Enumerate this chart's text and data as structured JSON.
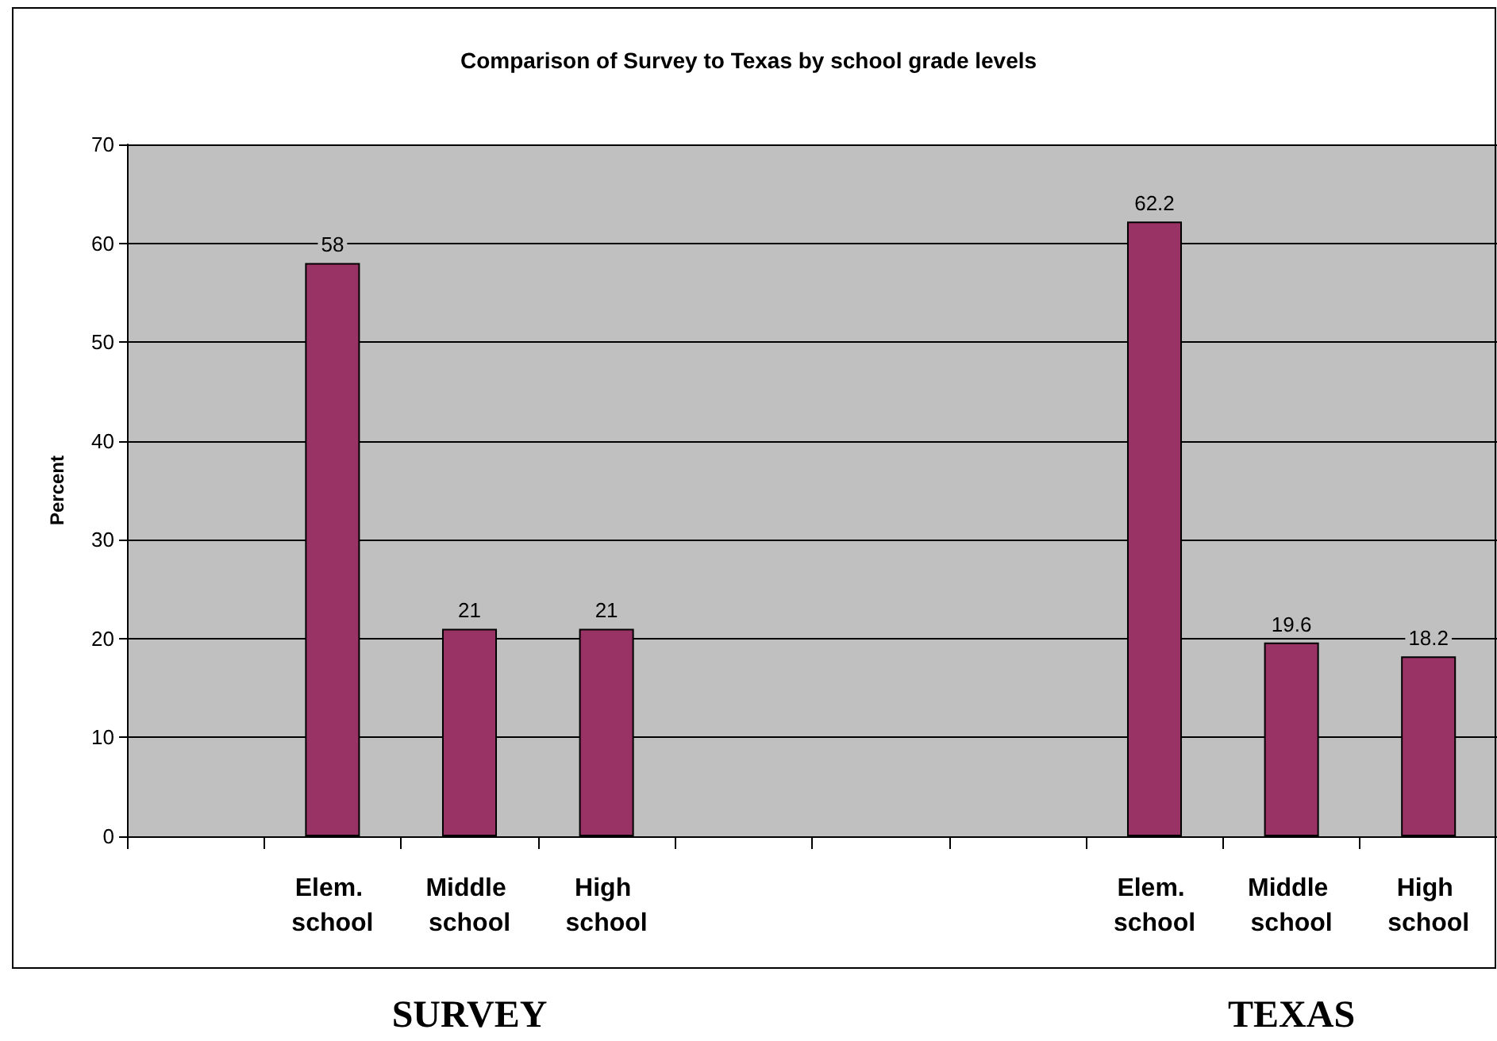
{
  "chart_data": {
    "type": "bar",
    "title": "Comparison of Survey to Texas by school grade levels",
    "ylabel": "Percent",
    "categories": [
      null,
      "Elem. school",
      "Middle school",
      "High school",
      null,
      null,
      null,
      "Elem. school",
      "Middle school",
      "High school"
    ],
    "values": [
      null,
      58,
      21,
      21,
      null,
      null,
      null,
      62.2,
      19.6,
      18.2
    ],
    "color": "#993366",
    "ylim": [
      0,
      70
    ],
    "yticks": [
      0,
      10,
      20,
      30,
      40,
      50,
      60,
      70
    ],
    "grid": "y",
    "data_labels": true,
    "annotations": [
      "SURVEY",
      "TEXAS"
    ]
  }
}
